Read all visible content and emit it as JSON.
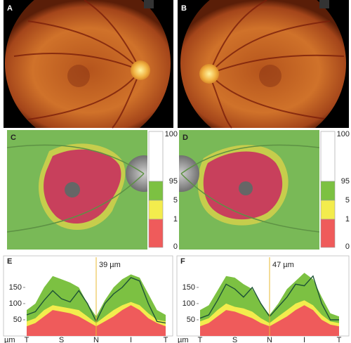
{
  "figure": {
    "panels": [
      {
        "label": "A"
      },
      {
        "label": "B"
      },
      {
        "label": "C",
        "scale_labels": [
          "100",
          "95",
          "5",
          "1",
          "0"
        ]
      },
      {
        "label": "D",
        "scale_labels": [
          "100",
          "95",
          "5",
          "1",
          "0"
        ]
      }
    ]
  },
  "chart_data": [
    {
      "type": "band-line",
      "panel_label": "E",
      "annotation": "39 µm",
      "ylabel": "µm",
      "categories": [
        "T",
        null,
        null,
        null,
        "S",
        null,
        null,
        null,
        "N",
        null,
        null,
        null,
        "I",
        null,
        null,
        null,
        "T"
      ],
      "ylim": [
        0,
        230
      ],
      "yticks": [
        50,
        100,
        150
      ],
      "series": [
        {
          "color": "#7cc142",
          "values": [
            80,
            100,
            150,
            185,
            175,
            165,
            150,
            100,
            60,
            110,
            150,
            175,
            190,
            180,
            130,
            80,
            65
          ]
        },
        {
          "color": "#f3ec4d",
          "values": [
            45,
            55,
            80,
            95,
            90,
            85,
            80,
            60,
            40,
            60,
            80,
            95,
            105,
            95,
            70,
            50,
            45
          ]
        },
        {
          "color": "#ef5b5b",
          "values": [
            30,
            40,
            60,
            80,
            75,
            70,
            60,
            45,
            30,
            45,
            60,
            80,
            95,
            80,
            55,
            40,
            30
          ]
        },
        {
          "color": "#1d5236",
          "values": [
            65,
            75,
            110,
            140,
            115,
            105,
            140,
            100,
            45,
            100,
            130,
            150,
            180,
            170,
            100,
            45,
            40
          ],
          "line": true
        }
      ]
    },
    {
      "type": "band-line",
      "panel_label": "F",
      "annotation": "47 µm",
      "ylabel": "µm",
      "categories": [
        "T",
        null,
        null,
        null,
        "S",
        null,
        null,
        null,
        "N",
        null,
        null,
        null,
        "I",
        null,
        null,
        null,
        "T"
      ],
      "ylim": [
        0,
        230
      ],
      "yticks": [
        50,
        100,
        150
      ],
      "series": [
        {
          "color": "#7cc142",
          "values": [
            80,
            95,
            140,
            185,
            180,
            160,
            145,
            100,
            65,
            100,
            145,
            170,
            195,
            175,
            120,
            70,
            60
          ]
        },
        {
          "color": "#f3ec4d",
          "values": [
            45,
            55,
            80,
            100,
            90,
            85,
            75,
            55,
            40,
            60,
            80,
            100,
            110,
            95,
            65,
            45,
            40
          ]
        },
        {
          "color": "#ef5b5b",
          "values": [
            30,
            40,
            60,
            80,
            75,
            65,
            55,
            40,
            30,
            45,
            60,
            80,
            95,
            80,
            50,
            35,
            30
          ]
        },
        {
          "color": "#1d5236",
          "values": [
            55,
            65,
            110,
            160,
            145,
            120,
            150,
            100,
            60,
            90,
            120,
            160,
            155,
            185,
            100,
            50,
            50
          ],
          "line": true
        }
      ]
    }
  ]
}
